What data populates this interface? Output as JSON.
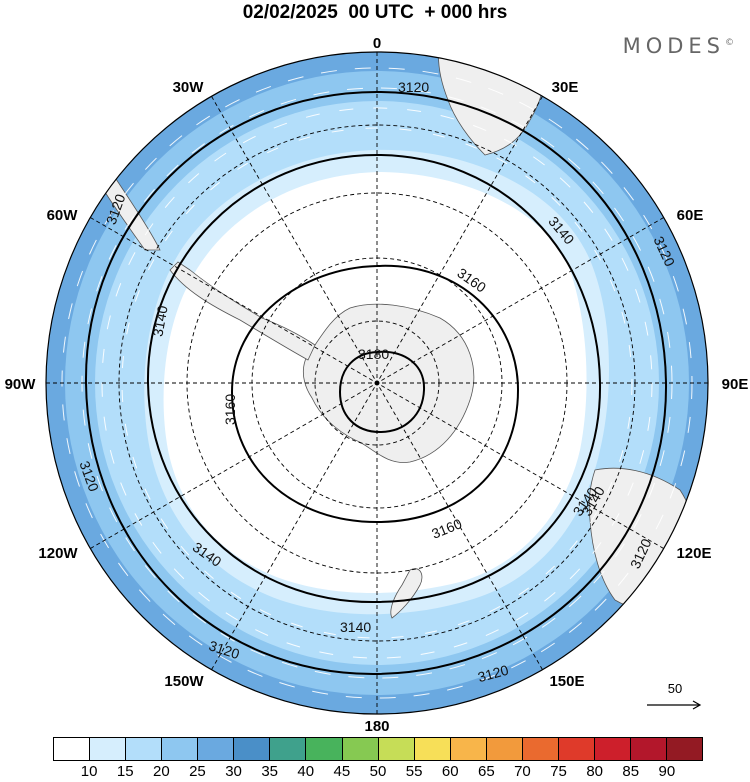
{
  "header": {
    "title": "02/02/2025  00 UTC  + 000 hrs",
    "brand": "MODES",
    "brand_mark": "©"
  },
  "map": {
    "projection": "south-polar-stereographic",
    "longitude_labels": {
      "top": "0",
      "top_right": "30E",
      "right_upper": "60E",
      "right": "90E",
      "right_lower": "120E",
      "bottom_right": "150E",
      "bottom": "180",
      "bottom_left": "150W",
      "left_lower": "120W",
      "left": "90W",
      "left_upper": "60W",
      "top_left": "30W"
    },
    "contour_labels": [
      "3120",
      "3120",
      "3120",
      "3120",
      "3120",
      "3120",
      "3120",
      "3140",
      "3140",
      "3140",
      "3140",
      "3140",
      "3140",
      "3160",
      "3160",
      "3160",
      "3180"
    ],
    "field_colors": {
      "land": "#efefef",
      "contour": "#000000",
      "graticule": "#000000",
      "wind_arrows": "#ffffff"
    }
  },
  "colorbar": {
    "colors": [
      "#ffffff",
      "#d6eefd",
      "#b3defa",
      "#8ec7f0",
      "#6aa9e0",
      "#4a8fc8",
      "#3fa18c",
      "#48b35c",
      "#86c952",
      "#c6dd57",
      "#f7df58",
      "#f8b54a",
      "#f29a3c",
      "#ea6a2f",
      "#df3a2a",
      "#cd1f2b",
      "#b3172b",
      "#931a23"
    ],
    "ticks": [
      "10",
      "15",
      "20",
      "25",
      "30",
      "35",
      "40",
      "45",
      "50",
      "55",
      "60",
      "65",
      "70",
      "75",
      "80",
      "85",
      "90"
    ]
  },
  "reference_vector": {
    "label": "50"
  }
}
